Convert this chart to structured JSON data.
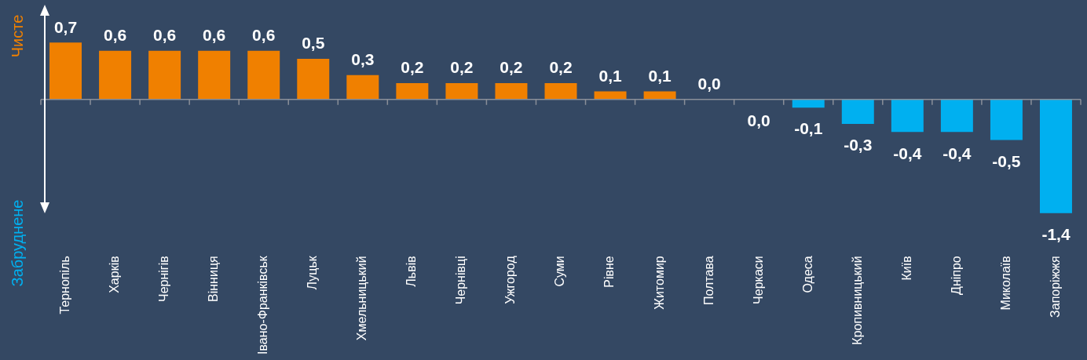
{
  "chart_data": {
    "type": "bar",
    "categories": [
      "Тернопіль",
      "Харків",
      "Чернігів",
      "Вінниця",
      "Івано-Франківськ",
      "Луцьк",
      "Хмельницький",
      "Львів",
      "Чернівці",
      "Ужгород",
      "Суми",
      "Рівне",
      "Житомир",
      "Полтава",
      "Черкаси",
      "Одеса",
      "Кропивницький",
      "Київ",
      "Дніпро",
      "Миколаїв",
      "Запоріжжя"
    ],
    "values": [
      0.7,
      0.6,
      0.6,
      0.6,
      0.6,
      0.5,
      0.3,
      0.2,
      0.2,
      0.2,
      0.2,
      0.1,
      0.1,
      0.0,
      0.0,
      -0.1,
      -0.3,
      -0.4,
      -0.4,
      -0.5,
      -1.4
    ],
    "colors": [
      "#f08000",
      "#f08000",
      "#f08000",
      "#f08000",
      "#f08000",
      "#f08000",
      "#f08000",
      "#f08000",
      "#f08000",
      "#f08000",
      "#f08000",
      "#f08000",
      "#f08000",
      "#f08000",
      "#00b0f0",
      "#00b0f0",
      "#00b0f0",
      "#00b0f0",
      "#00b0f0",
      "#00b0f0",
      "#00b0f0"
    ],
    "value_labels": [
      "0,7",
      "0,6",
      "0,6",
      "0,6",
      "0,6",
      "0,5",
      "0,3",
      "0,2",
      "0,2",
      "0,2",
      "0,2",
      "0,1",
      "0,1",
      "0,0",
      "0,0",
      "-0,1",
      "-0,3",
      "-0,4",
      "-0,4",
      "-0,5",
      "-1,4"
    ],
    "annotations": [
      "Чисте",
      "Забруднене"
    ]
  }
}
